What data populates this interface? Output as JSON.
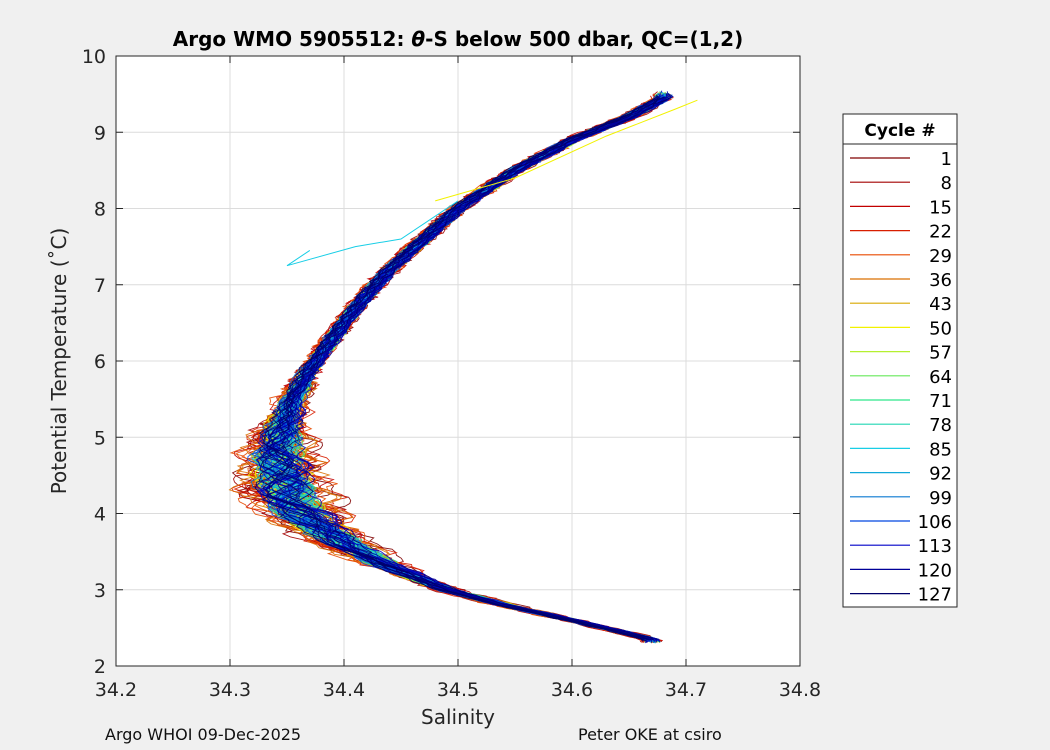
{
  "chart_data": {
    "type": "line",
    "title_prefix": "Argo WMO 5905512: ",
    "title_theta": "θ",
    "title_suffix": "-S below 500 dbar,  QC=(1,2)",
    "xlabel": "Salinity",
    "ylabel": "Potential Temperature (˚C)",
    "xlim": [
      34.2,
      34.8
    ],
    "ylim": [
      2,
      10
    ],
    "xticks": [
      "34.2",
      "34.3",
      "34.4",
      "34.5",
      "34.6",
      "34.7",
      "34.8"
    ],
    "yticks": [
      "2",
      "3",
      "4",
      "5",
      "6",
      "7",
      "8",
      "9",
      "10"
    ],
    "grid": true,
    "legend_title": "Cycle #",
    "legend_position": "outside-right",
    "mean_profile": {
      "salinity": [
        34.67,
        34.6,
        34.54,
        34.49,
        34.44,
        34.4,
        34.37,
        34.35,
        34.345,
        34.342,
        34.345,
        34.355,
        34.37,
        34.39,
        34.41,
        34.44,
        34.47,
        34.5,
        34.55,
        34.6,
        34.65,
        34.68
      ],
      "theta": [
        2.35,
        2.6,
        2.8,
        3.0,
        3.3,
        3.6,
        3.9,
        4.2,
        4.5,
        4.8,
        5.1,
        5.5,
        5.9,
        6.3,
        6.7,
        7.2,
        7.6,
        8.0,
        8.5,
        8.9,
        9.2,
        9.45
      ]
    },
    "series": [
      {
        "name": "1",
        "color": "#800000"
      },
      {
        "name": "8",
        "color": "#a30000"
      },
      {
        "name": "15",
        "color": "#c20000"
      },
      {
        "name": "22",
        "color": "#d81e00"
      },
      {
        "name": "29",
        "color": "#e84a00"
      },
      {
        "name": "36",
        "color": "#d96f00"
      },
      {
        "name": "43",
        "color": "#d9a800"
      },
      {
        "name": "50",
        "color": "#f2f200"
      },
      {
        "name": "57",
        "color": "#b5f030"
      },
      {
        "name": "64",
        "color": "#66e85a"
      },
      {
        "name": "71",
        "color": "#2ee68a"
      },
      {
        "name": "78",
        "color": "#20d6b4"
      },
      {
        "name": "85",
        "color": "#18cee6"
      },
      {
        "name": "92",
        "color": "#10a8d8"
      },
      {
        "name": "99",
        "color": "#0a78d0"
      },
      {
        "name": "106",
        "color": "#0046e0"
      },
      {
        "name": "113",
        "color": "#0000c8"
      },
      {
        "name": "120",
        "color": "#000098"
      },
      {
        "name": "127",
        "color": "#00006a"
      }
    ]
  },
  "footer": {
    "left": "Argo WHOI 09-Dec-2025",
    "right": "Peter OKE at csiro"
  }
}
